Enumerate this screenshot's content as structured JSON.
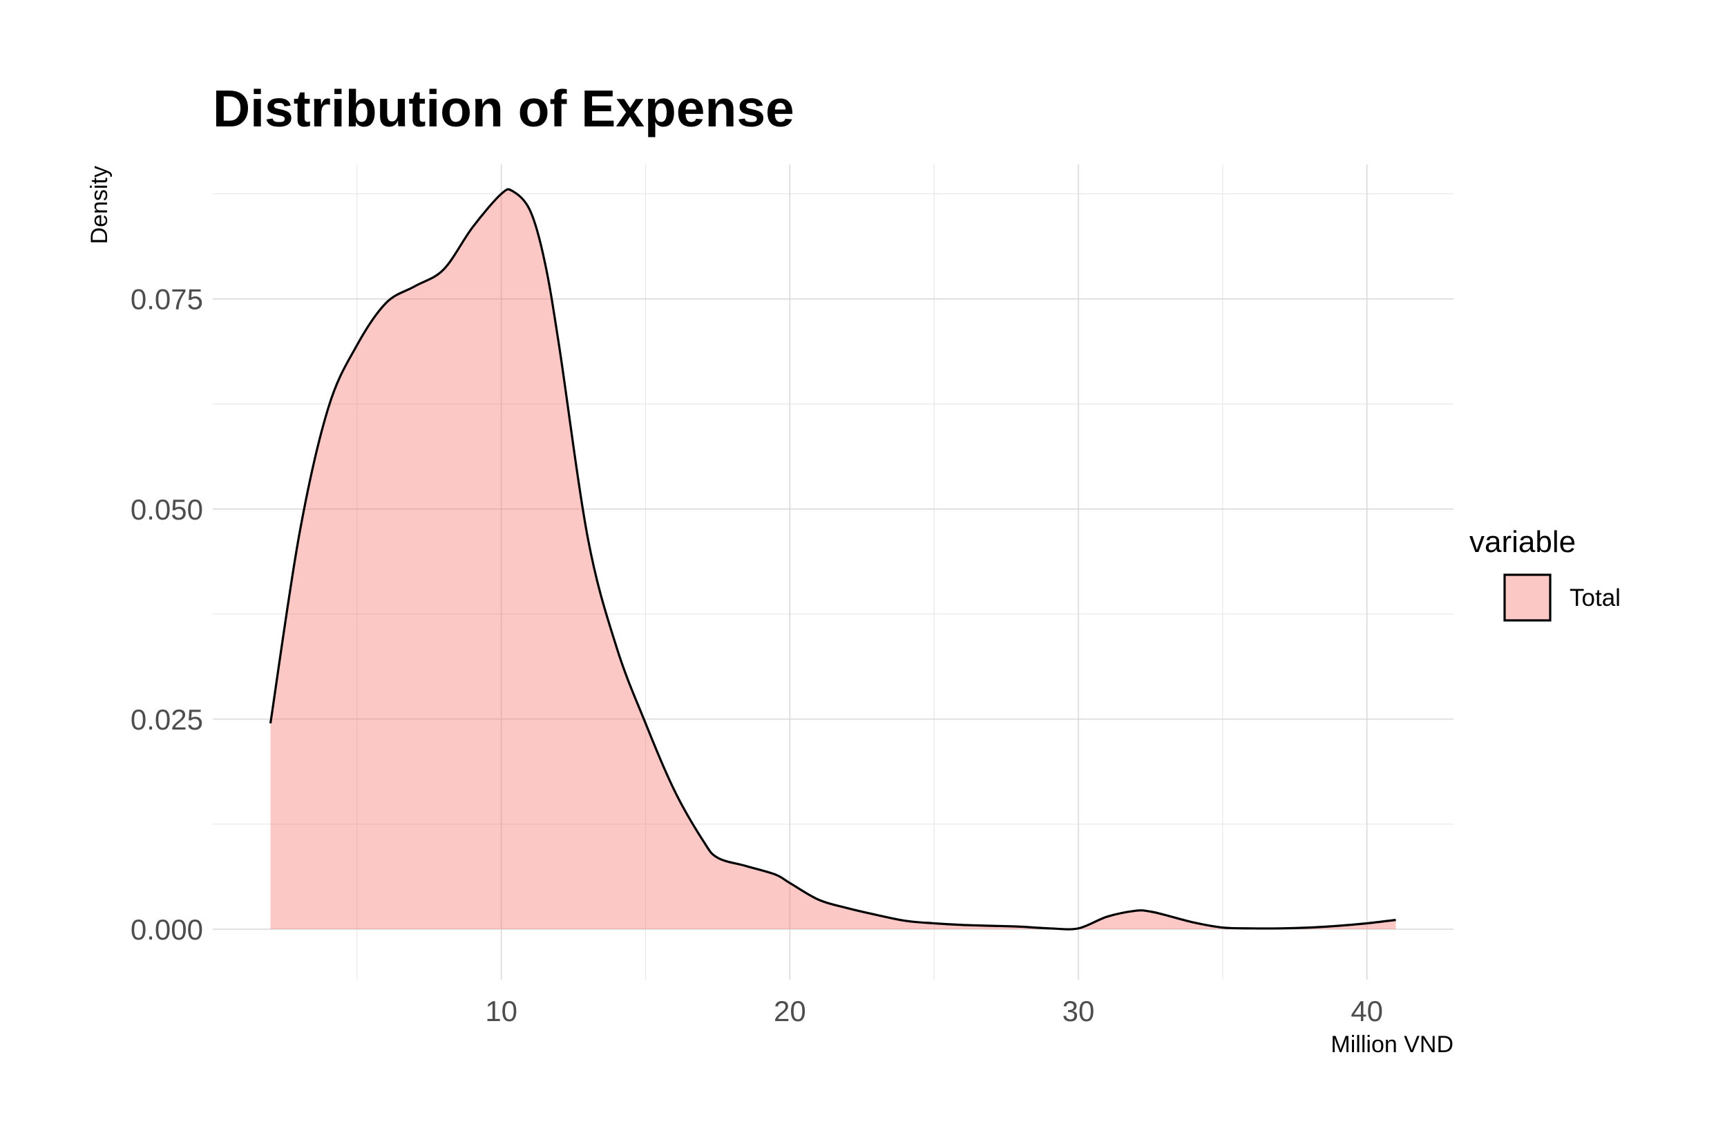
{
  "chart_data": {
    "type": "area",
    "title": "Distribution of Expense",
    "xlabel": "Million VND",
    "ylabel": "Density",
    "xlim": [
      0,
      43
    ],
    "ylim": [
      -0.006,
      0.091
    ],
    "x_ticks": [
      10,
      20,
      30,
      40
    ],
    "x_tick_labels": [
      "10",
      "20",
      "30",
      "40"
    ],
    "y_ticks": [
      0,
      0.025,
      0.05,
      0.075
    ],
    "y_tick_labels": [
      "0.000",
      "0.025",
      "0.050",
      "0.075"
    ],
    "grid": true,
    "legend": {
      "title": "variable",
      "position": "right",
      "entries": [
        {
          "label": "Total",
          "color": "#F8766D"
        }
      ]
    },
    "series": [
      {
        "name": "Total",
        "fill": "#F8766D",
        "fill_opacity": 0.4,
        "line_color": "#000000",
        "x": [
          2.0,
          3.0,
          4.0,
          5.0,
          6.0,
          7.0,
          8.0,
          9.0,
          10.0,
          10.4,
          11.0,
          11.5,
          12.0,
          13.0,
          14.0,
          15.0,
          16.0,
          17.0,
          17.5,
          18.5,
          19.5,
          20.0,
          21.0,
          22.0,
          23.0,
          24.0,
          25.0,
          26.0,
          27.0,
          28.0,
          29.0,
          30.0,
          31.0,
          32.0,
          32.5,
          33.0,
          34.0,
          35.0,
          36.0,
          37.0,
          38.0,
          39.0,
          40.0,
          41.0
        ],
        "y": [
          0.0245,
          0.047,
          0.062,
          0.0695,
          0.0745,
          0.0765,
          0.0785,
          0.0835,
          0.0875,
          0.0878,
          0.0855,
          0.0795,
          0.0695,
          0.0465,
          0.0335,
          0.0245,
          0.0165,
          0.0105,
          0.0085,
          0.0075,
          0.0065,
          0.0055,
          0.0035,
          0.0025,
          0.0017,
          0.001,
          0.0007,
          0.0005,
          0.0004,
          0.0003,
          0.0001,
          0.0001,
          0.0015,
          0.0022,
          0.0021,
          0.0017,
          0.0008,
          0.0002,
          0.0001,
          0.0001,
          0.0002,
          0.0004,
          0.0007,
          0.0011
        ]
      }
    ]
  }
}
